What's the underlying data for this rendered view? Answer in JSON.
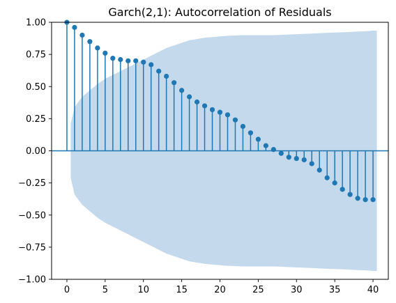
{
  "chart_data": {
    "type": "stem",
    "title": "Garch(2,1): Autocorrelation of Residuals",
    "xlabel": "",
    "ylabel": "",
    "xlim": [
      -2,
      42
    ],
    "ylim": [
      -1.0,
      1.0
    ],
    "x_ticks": [
      0,
      5,
      10,
      15,
      20,
      25,
      30,
      35,
      40
    ],
    "x_tick_labels": [
      "0",
      "5",
      "10",
      "15",
      "20",
      "25",
      "30",
      "35",
      "40"
    ],
    "y_ticks": [
      -1.0,
      -0.75,
      -0.5,
      -0.25,
      0.0,
      0.25,
      0.5,
      0.75,
      1.0
    ],
    "y_tick_labels": [
      "−1.00",
      "−0.75",
      "−0.50",
      "−0.25",
      "0.00",
      "0.25",
      "0.50",
      "0.75",
      "1.00"
    ],
    "grid": false,
    "legend": "none",
    "series": [
      {
        "x": [
          0,
          1,
          2,
          3,
          4,
          5,
          6,
          7,
          8,
          9,
          10,
          11,
          12,
          13,
          14,
          15,
          16,
          17,
          18,
          19,
          20,
          21,
          22,
          23,
          24,
          25,
          26,
          27,
          28,
          29,
          30,
          31,
          32,
          33,
          34,
          35,
          36,
          37,
          38,
          39,
          40
        ],
        "values": [
          1.0,
          0.96,
          0.9,
          0.85,
          0.8,
          0.76,
          0.72,
          0.71,
          0.7,
          0.7,
          0.69,
          0.67,
          0.62,
          0.58,
          0.53,
          0.47,
          0.42,
          0.38,
          0.35,
          0.32,
          0.3,
          0.28,
          0.24,
          0.19,
          0.14,
          0.09,
          0.04,
          0.01,
          -0.02,
          -0.05,
          -0.06,
          -0.07,
          -0.1,
          -0.15,
          -0.21,
          -0.25,
          -0.3,
          -0.34,
          -0.37,
          -0.38,
          -0.38
        ]
      }
    ],
    "confidence_band": {
      "x": [
        0,
        1,
        2,
        3,
        4,
        5,
        6,
        7,
        8,
        9,
        10,
        11,
        12,
        13,
        14,
        15,
        16,
        17,
        18,
        19,
        20,
        21,
        22,
        23,
        24,
        25,
        26,
        27,
        28,
        29,
        30,
        31,
        32,
        33,
        34,
        35,
        36,
        37,
        38,
        39,
        40
      ],
      "upper": [
        0.21,
        0.34,
        0.42,
        0.47,
        0.52,
        0.56,
        0.59,
        0.62,
        0.65,
        0.68,
        0.71,
        0.74,
        0.77,
        0.8,
        0.82,
        0.84,
        0.86,
        0.87,
        0.88,
        0.885,
        0.89,
        0.895,
        0.897,
        0.9,
        0.9,
        0.9,
        0.9,
        0.9,
        0.902,
        0.905,
        0.907,
        0.91,
        0.912,
        0.915,
        0.918,
        0.92,
        0.922,
        0.925,
        0.928,
        0.93,
        0.935
      ]
    },
    "colors": {
      "stem": "#1f77b4",
      "marker": "#1f77b4",
      "zero_line": "#1f77b4",
      "band": "#c4d9ec",
      "axes": "#000000"
    }
  }
}
